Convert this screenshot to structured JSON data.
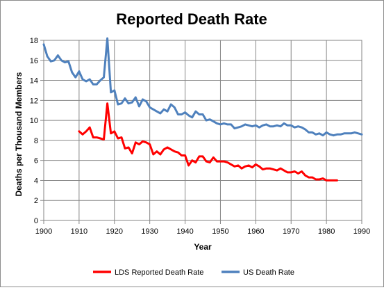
{
  "chart_data": {
    "type": "line",
    "title": "Reported Death Rate",
    "xlabel": "Year",
    "ylabel": "Deaths per Thousand  Members",
    "xlim": [
      1900,
      1990
    ],
    "ylim": [
      0,
      18
    ],
    "x_ticks": [
      "1900",
      "1910",
      "1920",
      "1930",
      "1940",
      "1950",
      "1960",
      "1970",
      "1980",
      "1990"
    ],
    "y_ticks": [
      "0",
      "2",
      "4",
      "6",
      "8",
      "10",
      "12",
      "14",
      "16",
      "18"
    ],
    "grid": true,
    "legend_position": "bottom",
    "series": [
      {
        "name": "LDS Reported Death Rate",
        "color": "#ff0000",
        "x": [
          1910,
          1911,
          1912,
          1913,
          1914,
          1915,
          1916,
          1917,
          1918,
          1919,
          1920,
          1921,
          1922,
          1923,
          1924,
          1925,
          1926,
          1927,
          1928,
          1929,
          1930,
          1931,
          1932,
          1933,
          1934,
          1935,
          1936,
          1937,
          1938,
          1939,
          1940,
          1941,
          1942,
          1943,
          1944,
          1945,
          1946,
          1947,
          1948,
          1949,
          1950,
          1951,
          1952,
          1953,
          1954,
          1955,
          1956,
          1957,
          1958,
          1959,
          1960,
          1961,
          1962,
          1963,
          1964,
          1965,
          1966,
          1967,
          1968,
          1969,
          1970,
          1971,
          1972,
          1973,
          1974,
          1975,
          1976,
          1977,
          1978,
          1979,
          1980,
          1981,
          1982,
          1983
        ],
        "values": [
          8.9,
          8.6,
          8.9,
          9.3,
          8.3,
          8.3,
          8.2,
          8.1,
          11.7,
          8.7,
          8.9,
          8.2,
          8.3,
          7.2,
          7.3,
          6.7,
          7.8,
          7.6,
          7.9,
          7.8,
          7.6,
          6.6,
          6.9,
          6.6,
          7.1,
          7.3,
          7.1,
          6.9,
          6.8,
          6.5,
          6.5,
          5.5,
          6.0,
          5.8,
          6.4,
          6.4,
          5.9,
          5.8,
          6.3,
          5.9,
          5.9,
          5.9,
          5.8,
          5.6,
          5.4,
          5.5,
          5.2,
          5.4,
          5.5,
          5.3,
          5.6,
          5.4,
          5.1,
          5.2,
          5.2,
          5.1,
          5.0,
          5.2,
          5.0,
          4.8,
          4.8,
          4.9,
          4.7,
          4.9,
          4.5,
          4.3,
          4.3,
          4.1,
          4.1,
          4.2,
          4.0,
          4.0,
          4.0,
          4.0
        ]
      },
      {
        "name": "US Death Rate",
        "color": "#4f81bd",
        "x": [
          1900,
          1901,
          1902,
          1903,
          1904,
          1905,
          1906,
          1907,
          1908,
          1909,
          1910,
          1911,
          1912,
          1913,
          1914,
          1915,
          1916,
          1917,
          1918,
          1919,
          1920,
          1921,
          1922,
          1923,
          1924,
          1925,
          1926,
          1927,
          1928,
          1929,
          1930,
          1931,
          1932,
          1933,
          1934,
          1935,
          1936,
          1937,
          1938,
          1939,
          1940,
          1941,
          1942,
          1943,
          1944,
          1945,
          1946,
          1947,
          1948,
          1949,
          1950,
          1951,
          1952,
          1953,
          1954,
          1955,
          1956,
          1957,
          1958,
          1959,
          1960,
          1961,
          1962,
          1963,
          1964,
          1965,
          1966,
          1967,
          1968,
          1969,
          1970,
          1971,
          1972,
          1973,
          1974,
          1975,
          1976,
          1977,
          1978,
          1979,
          1980,
          1981,
          1982,
          1983,
          1984,
          1985,
          1986,
          1987,
          1988,
          1989,
          1990
        ],
        "values": [
          17.6,
          16.4,
          15.9,
          16.0,
          16.5,
          16.0,
          15.8,
          15.9,
          14.8,
          14.3,
          14.9,
          14.1,
          13.9,
          14.1,
          13.6,
          13.6,
          14.0,
          14.3,
          18.2,
          12.8,
          13.0,
          11.6,
          11.7,
          12.2,
          11.7,
          11.8,
          12.3,
          11.4,
          12.1,
          11.9,
          11.3,
          11.1,
          10.9,
          10.7,
          11.1,
          10.9,
          11.6,
          11.3,
          10.6,
          10.6,
          10.8,
          10.5,
          10.3,
          10.9,
          10.6,
          10.6,
          10.0,
          10.1,
          9.9,
          9.7,
          9.6,
          9.7,
          9.6,
          9.6,
          9.2,
          9.3,
          9.4,
          9.6,
          9.5,
          9.4,
          9.5,
          9.3,
          9.5,
          9.6,
          9.4,
          9.4,
          9.5,
          9.4,
          9.7,
          9.5,
          9.5,
          9.3,
          9.4,
          9.3,
          9.1,
          8.8,
          8.8,
          8.6,
          8.7,
          8.5,
          8.8,
          8.6,
          8.5,
          8.6,
          8.6,
          8.7,
          8.7,
          8.7,
          8.8,
          8.7,
          8.6
        ]
      }
    ]
  }
}
